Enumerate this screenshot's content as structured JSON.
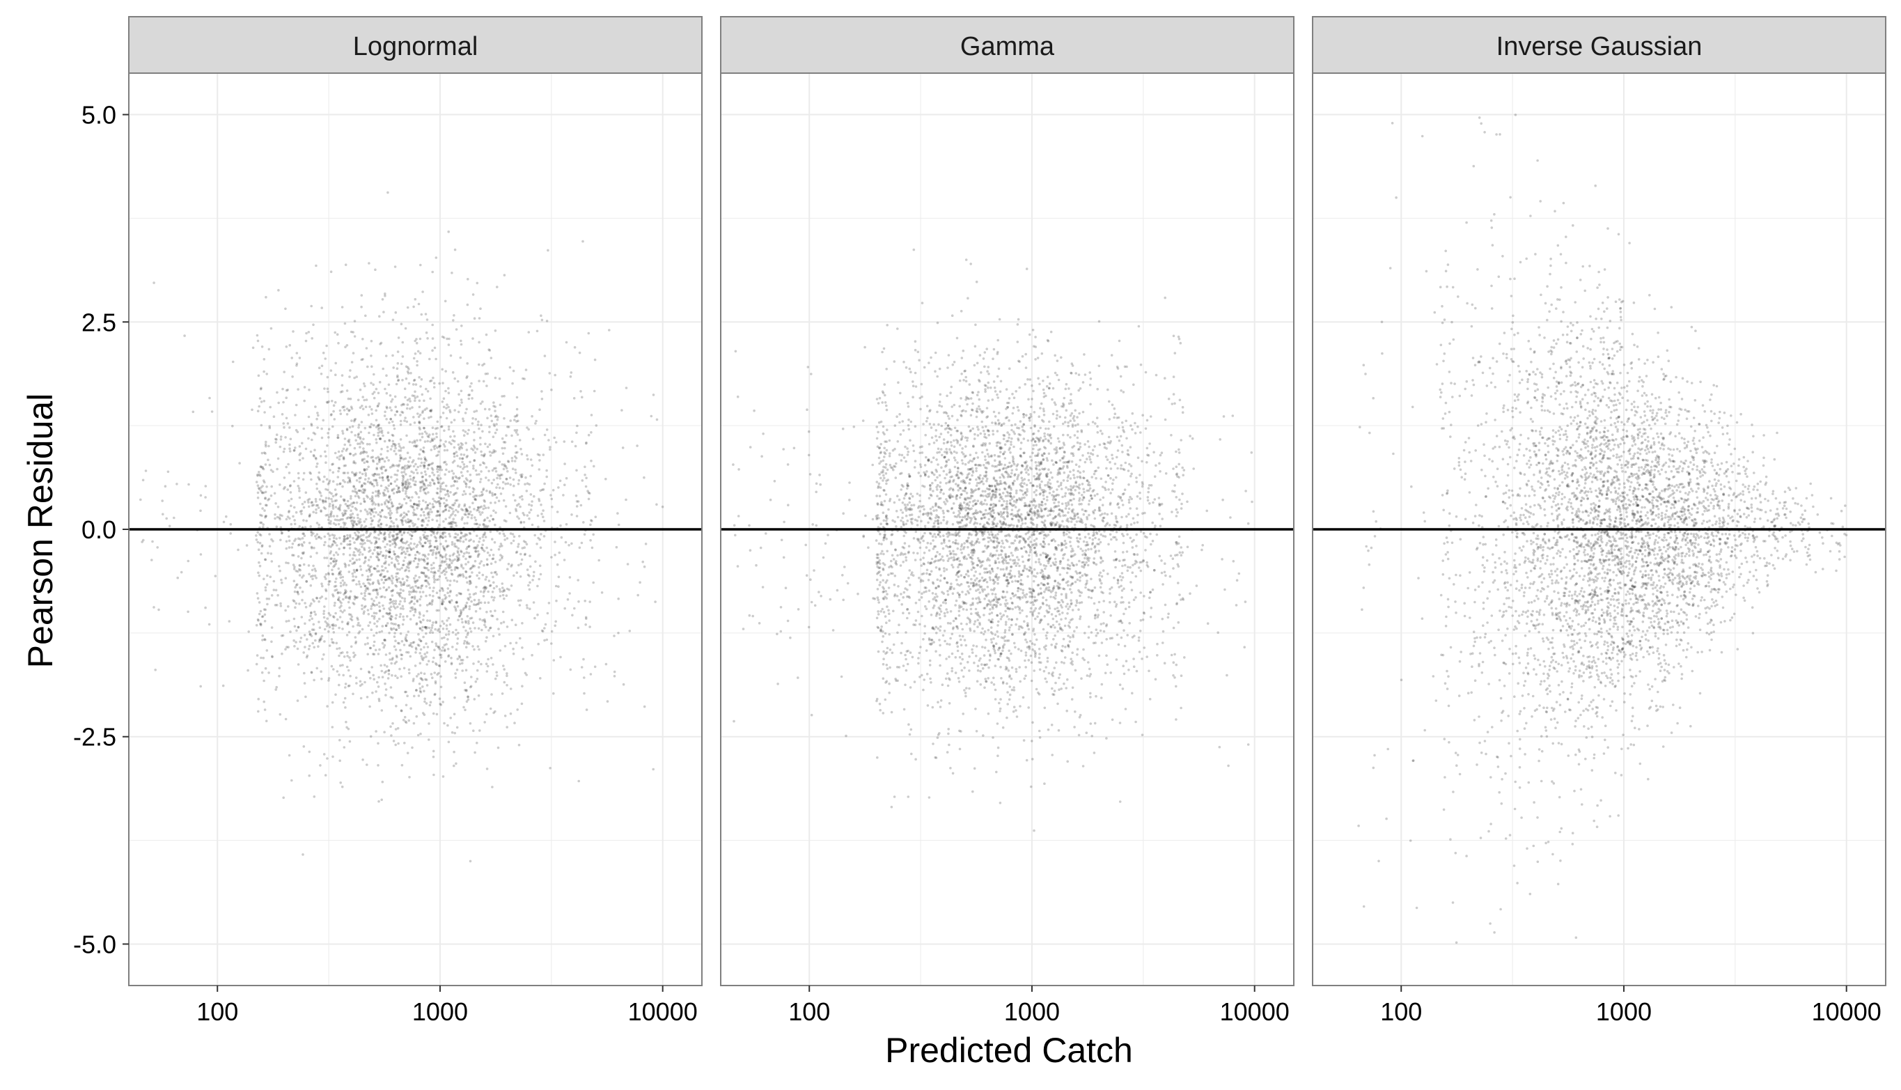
{
  "chart_data": {
    "type": "scatter",
    "xlabel": "Predicted Catch",
    "ylabel": "Pearson Residual",
    "x_scale": "log10",
    "xlim": [
      40,
      15000
    ],
    "ylim": [
      -5.5,
      5.5
    ],
    "x_ticks": [
      100,
      1000,
      10000
    ],
    "x_tick_labels": [
      "100",
      "1000",
      "10000"
    ],
    "y_ticks": [
      5.0,
      2.5,
      0.0,
      -2.5,
      -5.0
    ],
    "y_tick_labels": [
      "5.0",
      "2.5",
      "0.0",
      "-2.5",
      "-5.0"
    ],
    "reference_line_y": 0,
    "grid": true,
    "legend": "none",
    "point_color": "#000000",
    "point_alpha": 0.2,
    "panels": [
      {
        "label": "Lognormal",
        "x_range_bulk": [
          150,
          5000
        ],
        "x_range_sparse": [
          45,
          10000
        ],
        "center_x": 700,
        "residual_spread_sd": 1.1,
        "residual_range_approx": [
          -4.2,
          4.2
        ],
        "spread_trend": "roughly constant"
      },
      {
        "label": "Gamma",
        "x_range_bulk": [
          200,
          4800
        ],
        "x_range_sparse": [
          45,
          10000
        ],
        "center_x": 800,
        "residual_spread_sd": 1.1,
        "residual_range_approx": [
          -4.9,
          3.5
        ],
        "spread_trend": "roughly constant, slight negative skew"
      },
      {
        "label": "Inverse Gaussian",
        "x_range_bulk": [
          150,
          7000
        ],
        "x_range_sparse": [
          60,
          10000
        ],
        "center_x": 900,
        "residual_spread_sd_at_100": 2.2,
        "residual_spread_sd_at_5000": 0.35,
        "residual_range_approx": [
          -5.0,
          5.0
        ],
        "spread_trend": "decreasing with predicted catch (funnel shape)"
      }
    ]
  },
  "colors": {
    "strip_fill": "#d9d9d9",
    "strip_border": "#7f7f7f",
    "panel_border": "#7f7f7f",
    "grid": "#ebebeb",
    "zero_line": "#000000"
  }
}
